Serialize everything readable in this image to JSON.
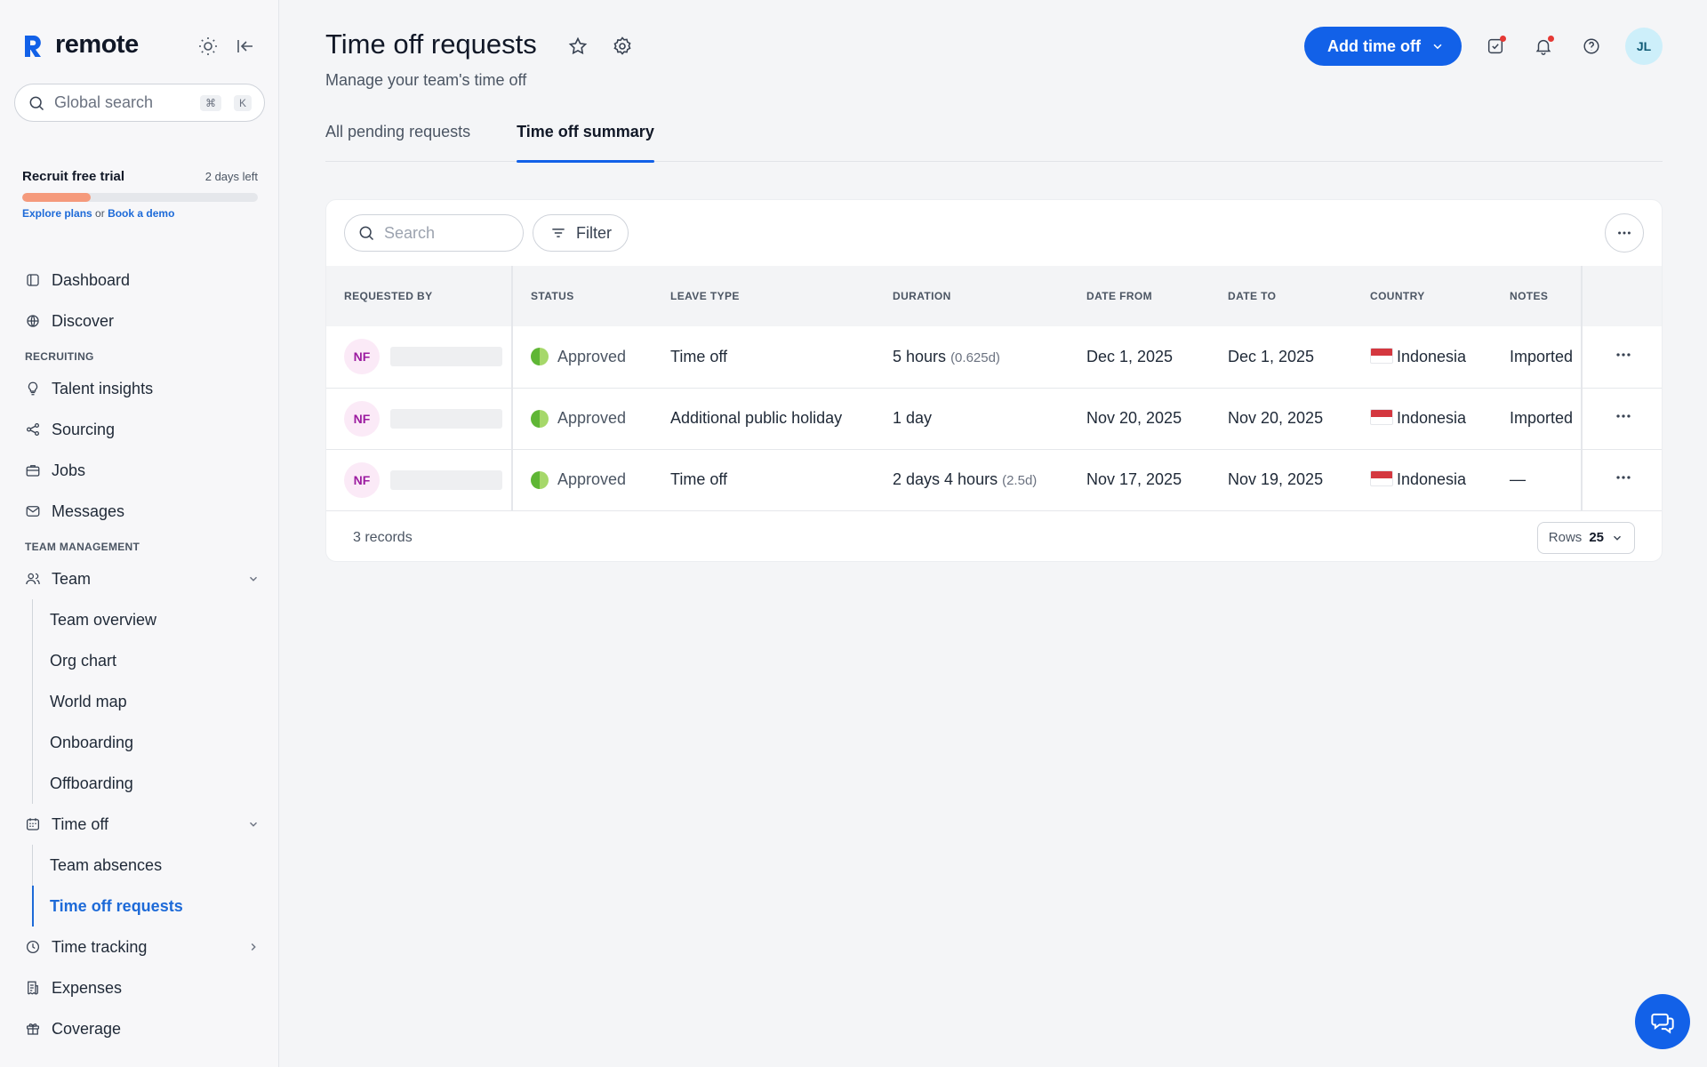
{
  "app": {
    "name": "remote"
  },
  "search": {
    "placeholder": "Global search",
    "shortcut_mod": "⌘",
    "shortcut_key": "K"
  },
  "trial": {
    "title": "Recruit free trial",
    "days_left": "2 days left",
    "progress": 0.29,
    "explore": "Explore plans",
    "or": "or",
    "demo": "Book a demo"
  },
  "nav": {
    "dashboard": "Dashboard",
    "discover": "Discover",
    "recruiting_section": "RECRUITING",
    "talent": "Talent insights",
    "sourcing": "Sourcing",
    "jobs": "Jobs",
    "messages": "Messages",
    "team_section": "TEAM MANAGEMENT",
    "team": "Team",
    "team_overview": "Team overview",
    "org_chart": "Org chart",
    "world_map": "World map",
    "onboarding": "Onboarding",
    "offboarding": "Offboarding",
    "time_off": "Time off",
    "team_absences": "Team absences",
    "time_off_requests": "Time off requests",
    "time_tracking": "Time tracking",
    "expenses": "Expenses",
    "coverage": "Coverage"
  },
  "page": {
    "title": "Time off requests",
    "subtitle": "Manage your team's time off"
  },
  "header": {
    "add_label": "Add time off",
    "avatar_initials": "JL"
  },
  "tabs": [
    "All pending requests",
    "Time off summary"
  ],
  "table": {
    "search_placeholder": "Search",
    "filter_label": "Filter",
    "columns": [
      "REQUESTED BY",
      "STATUS",
      "LEAVE TYPE",
      "DURATION",
      "DATE FROM",
      "DATE TO",
      "COUNTRY",
      "NOTES"
    ],
    "rows": [
      {
        "initials": "NF",
        "status": "Approved",
        "leave_type": "Time off",
        "duration": "5 hours",
        "duration_sub": "(0.625d)",
        "date_from": "Dec 1, 2025",
        "date_to": "Dec 1, 2025",
        "country": "Indonesia",
        "notes": "Imported"
      },
      {
        "initials": "NF",
        "status": "Approved",
        "leave_type": "Additional public holiday",
        "duration": "1 day",
        "duration_sub": "",
        "date_from": "Nov 20, 2025",
        "date_to": "Nov 20, 2025",
        "country": "Indonesia",
        "notes": "Imported"
      },
      {
        "initials": "NF",
        "status": "Approved",
        "leave_type": "Time off",
        "duration": "2 days 4 hours",
        "duration_sub": "(2.5d)",
        "date_from": "Nov 17, 2025",
        "date_to": "Nov 19, 2025",
        "country": "Indonesia",
        "notes": "—"
      }
    ],
    "records": "3 records",
    "rows_label": "Rows",
    "rows_value": "25"
  },
  "colors": {
    "accent": "#1261e8",
    "approved": "#5fb635",
    "trial": "#f59a7c"
  }
}
